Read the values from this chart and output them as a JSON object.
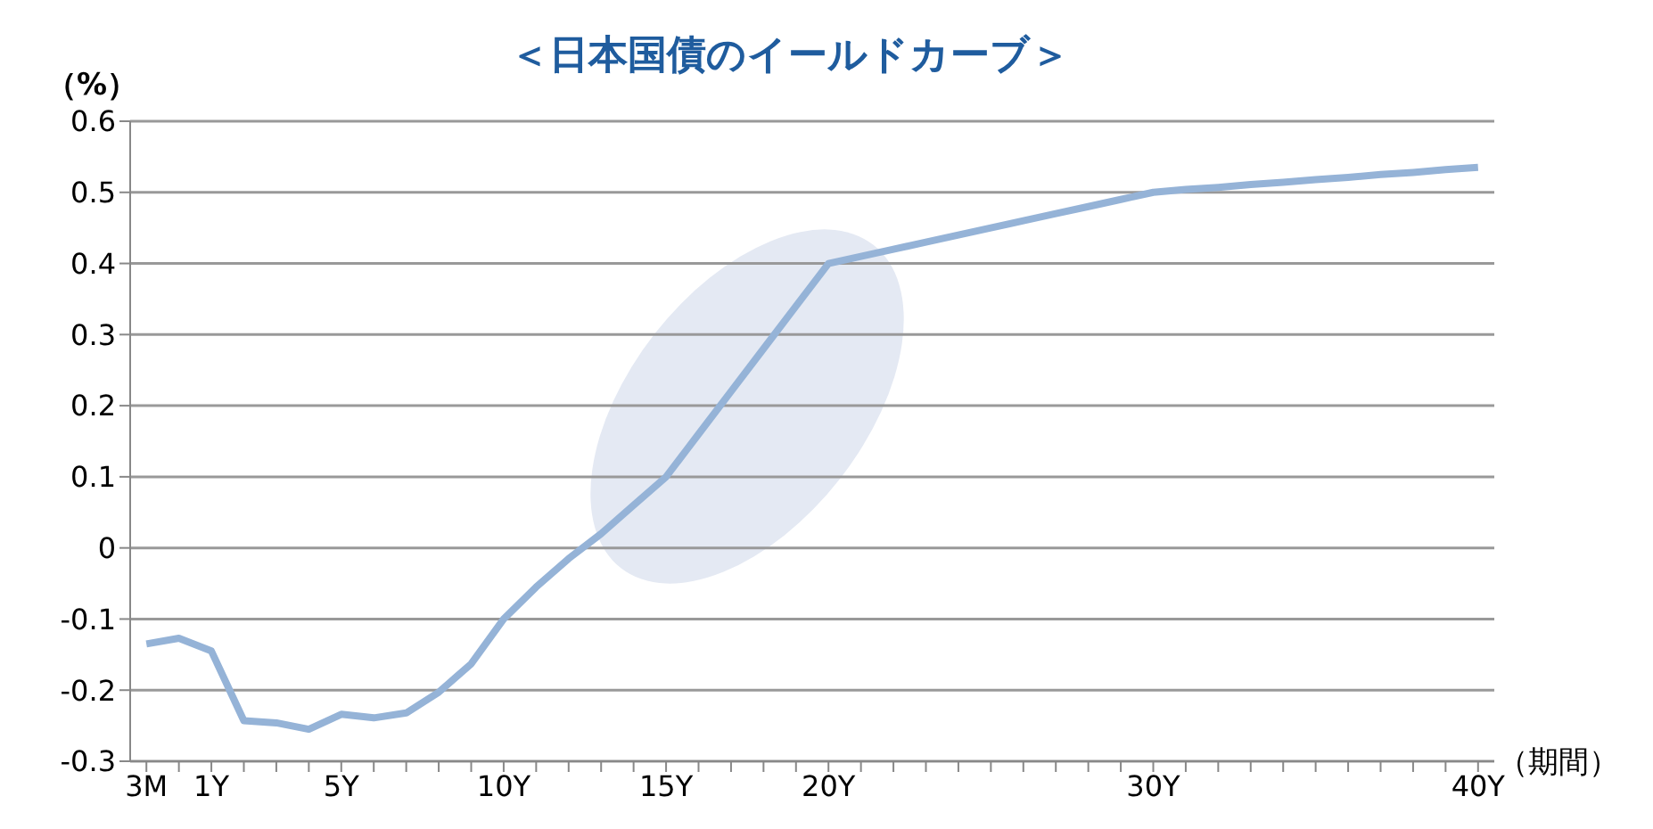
{
  "chart_data": {
    "type": "line",
    "title": "＜日本国債のイールドカーブ＞",
    "ylabel": "（%）",
    "xlabel": "（期間）",
    "categories": [
      "3M",
      null,
      "1Y",
      null,
      null,
      null,
      "5Y",
      null,
      null,
      null,
      null,
      "10Y",
      null,
      null,
      null,
      null,
      "15Y",
      null,
      null,
      null,
      null,
      "20Y",
      null,
      null,
      null,
      null,
      null,
      null,
      null,
      null,
      null,
      "30Y",
      null,
      null,
      null,
      null,
      null,
      null,
      null,
      null,
      null,
      "40Y"
    ],
    "series": [
      {
        "color": "#95b3d7",
        "values": [
          -0.135,
          -0.127,
          -0.145,
          -0.243,
          -0.246,
          -0.255,
          -0.234,
          -0.239,
          -0.232,
          -0.203,
          -0.163,
          -0.1,
          -0.055,
          -0.015,
          0.02,
          0.06,
          0.1,
          0.16,
          0.22,
          0.28,
          0.34,
          0.4,
          0.41,
          0.42,
          0.43,
          0.44,
          0.45,
          0.46,
          0.47,
          0.48,
          0.49,
          0.5,
          0.504,
          0.507,
          0.511,
          0.514,
          0.518,
          0.521,
          0.525,
          0.528,
          0.532,
          0.535
        ]
      }
    ],
    "ylim": [
      -0.3,
      0.6
    ],
    "yticks": [
      -0.3,
      -0.2,
      -0.1,
      0,
      0.1,
      0.2,
      0.3,
      0.4,
      0.5,
      0.6
    ],
    "grid": "y",
    "legend": false,
    "marker": "none",
    "line_style": "solid"
  }
}
